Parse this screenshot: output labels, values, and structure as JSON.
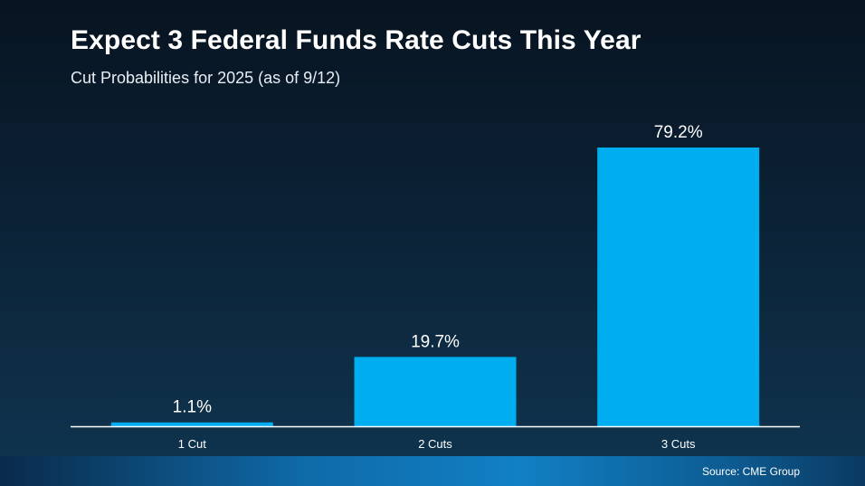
{
  "header": {
    "title": "Expect 3 Federal Funds Rate Cuts This Year",
    "subtitle": "Cut Probabilities for 2025 (as of 9/12)"
  },
  "footer": {
    "source": "Source: CME Group"
  },
  "colors": {
    "bar": "#00adee",
    "axis": "#ffffff",
    "text": "#ffffff"
  },
  "chart_data": {
    "type": "bar",
    "title": "Expect 3 Federal Funds Rate Cuts This Year",
    "subtitle": "Cut Probabilities for 2025 (as of 9/12)",
    "categories": [
      "1 Cut",
      "2 Cuts",
      "3 Cuts"
    ],
    "values": [
      1.1,
      19.7,
      79.2
    ],
    "labels": [
      "1.1%",
      "19.7%",
      "79.2%"
    ],
    "unit": "%",
    "xlabel": "",
    "ylabel": "",
    "ylim": [
      0,
      80
    ],
    "grid": false,
    "legend": "none"
  }
}
